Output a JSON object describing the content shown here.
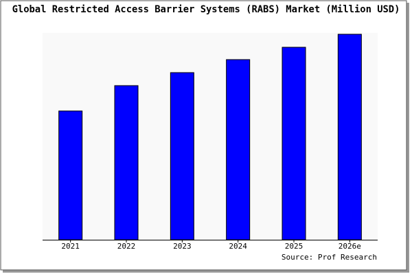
{
  "chart_data": {
    "type": "bar",
    "title": "Global Restricted Access Barrier Systems (RABS) Market (Million USD)",
    "categories": [
      "2021",
      "2022",
      "2023",
      "2024",
      "2025",
      "2026e"
    ],
    "values": [
      188,
      225,
      244,
      263,
      281,
      300
    ],
    "color": "#0000ff",
    "ylim": [
      0,
      300
    ],
    "source": "Source: Prof Research"
  }
}
